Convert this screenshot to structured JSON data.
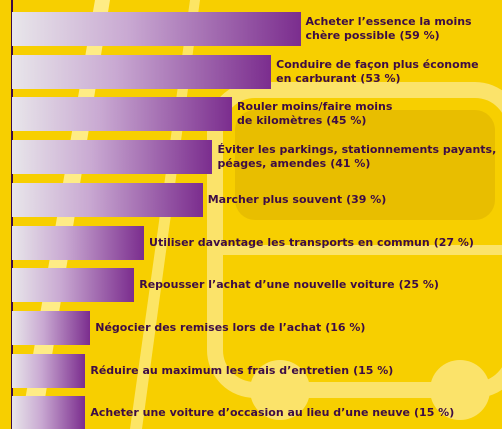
{
  "chart_data": {
    "type": "bar",
    "orientation": "horizontal",
    "categories": [
      "Acheter l’essence la moins\nchère possible",
      "Conduire de façon plus économe\nen carburant",
      "Rouler moins/faire moins\nde kilomètres",
      "Éviter les parkings, stationnements payants,\npéages, amendes",
      "Marcher plus souvent",
      "Utiliser davantage les transports en commun",
      "Repousser l’achat d’une nouvelle voiture",
      "Négocier des remises lors de l’achat",
      "Réduire au maximum les frais d’entretien",
      "Acheter une voiture d’occasion au lieu d’une neuve"
    ],
    "values": [
      59,
      53,
      45,
      41,
      39,
      27,
      25,
      16,
      15,
      15
    ],
    "value_labels": [
      "(59 %)",
      "(53 %)",
      "(45 %)",
      "(41 %)",
      "(39 %)",
      "(27 %)",
      "(25 %)",
      "(16 %)",
      "(15 %)",
      "(15 %)"
    ],
    "color": "#7b2d8e",
    "xlim": [
      0,
      100
    ]
  }
}
